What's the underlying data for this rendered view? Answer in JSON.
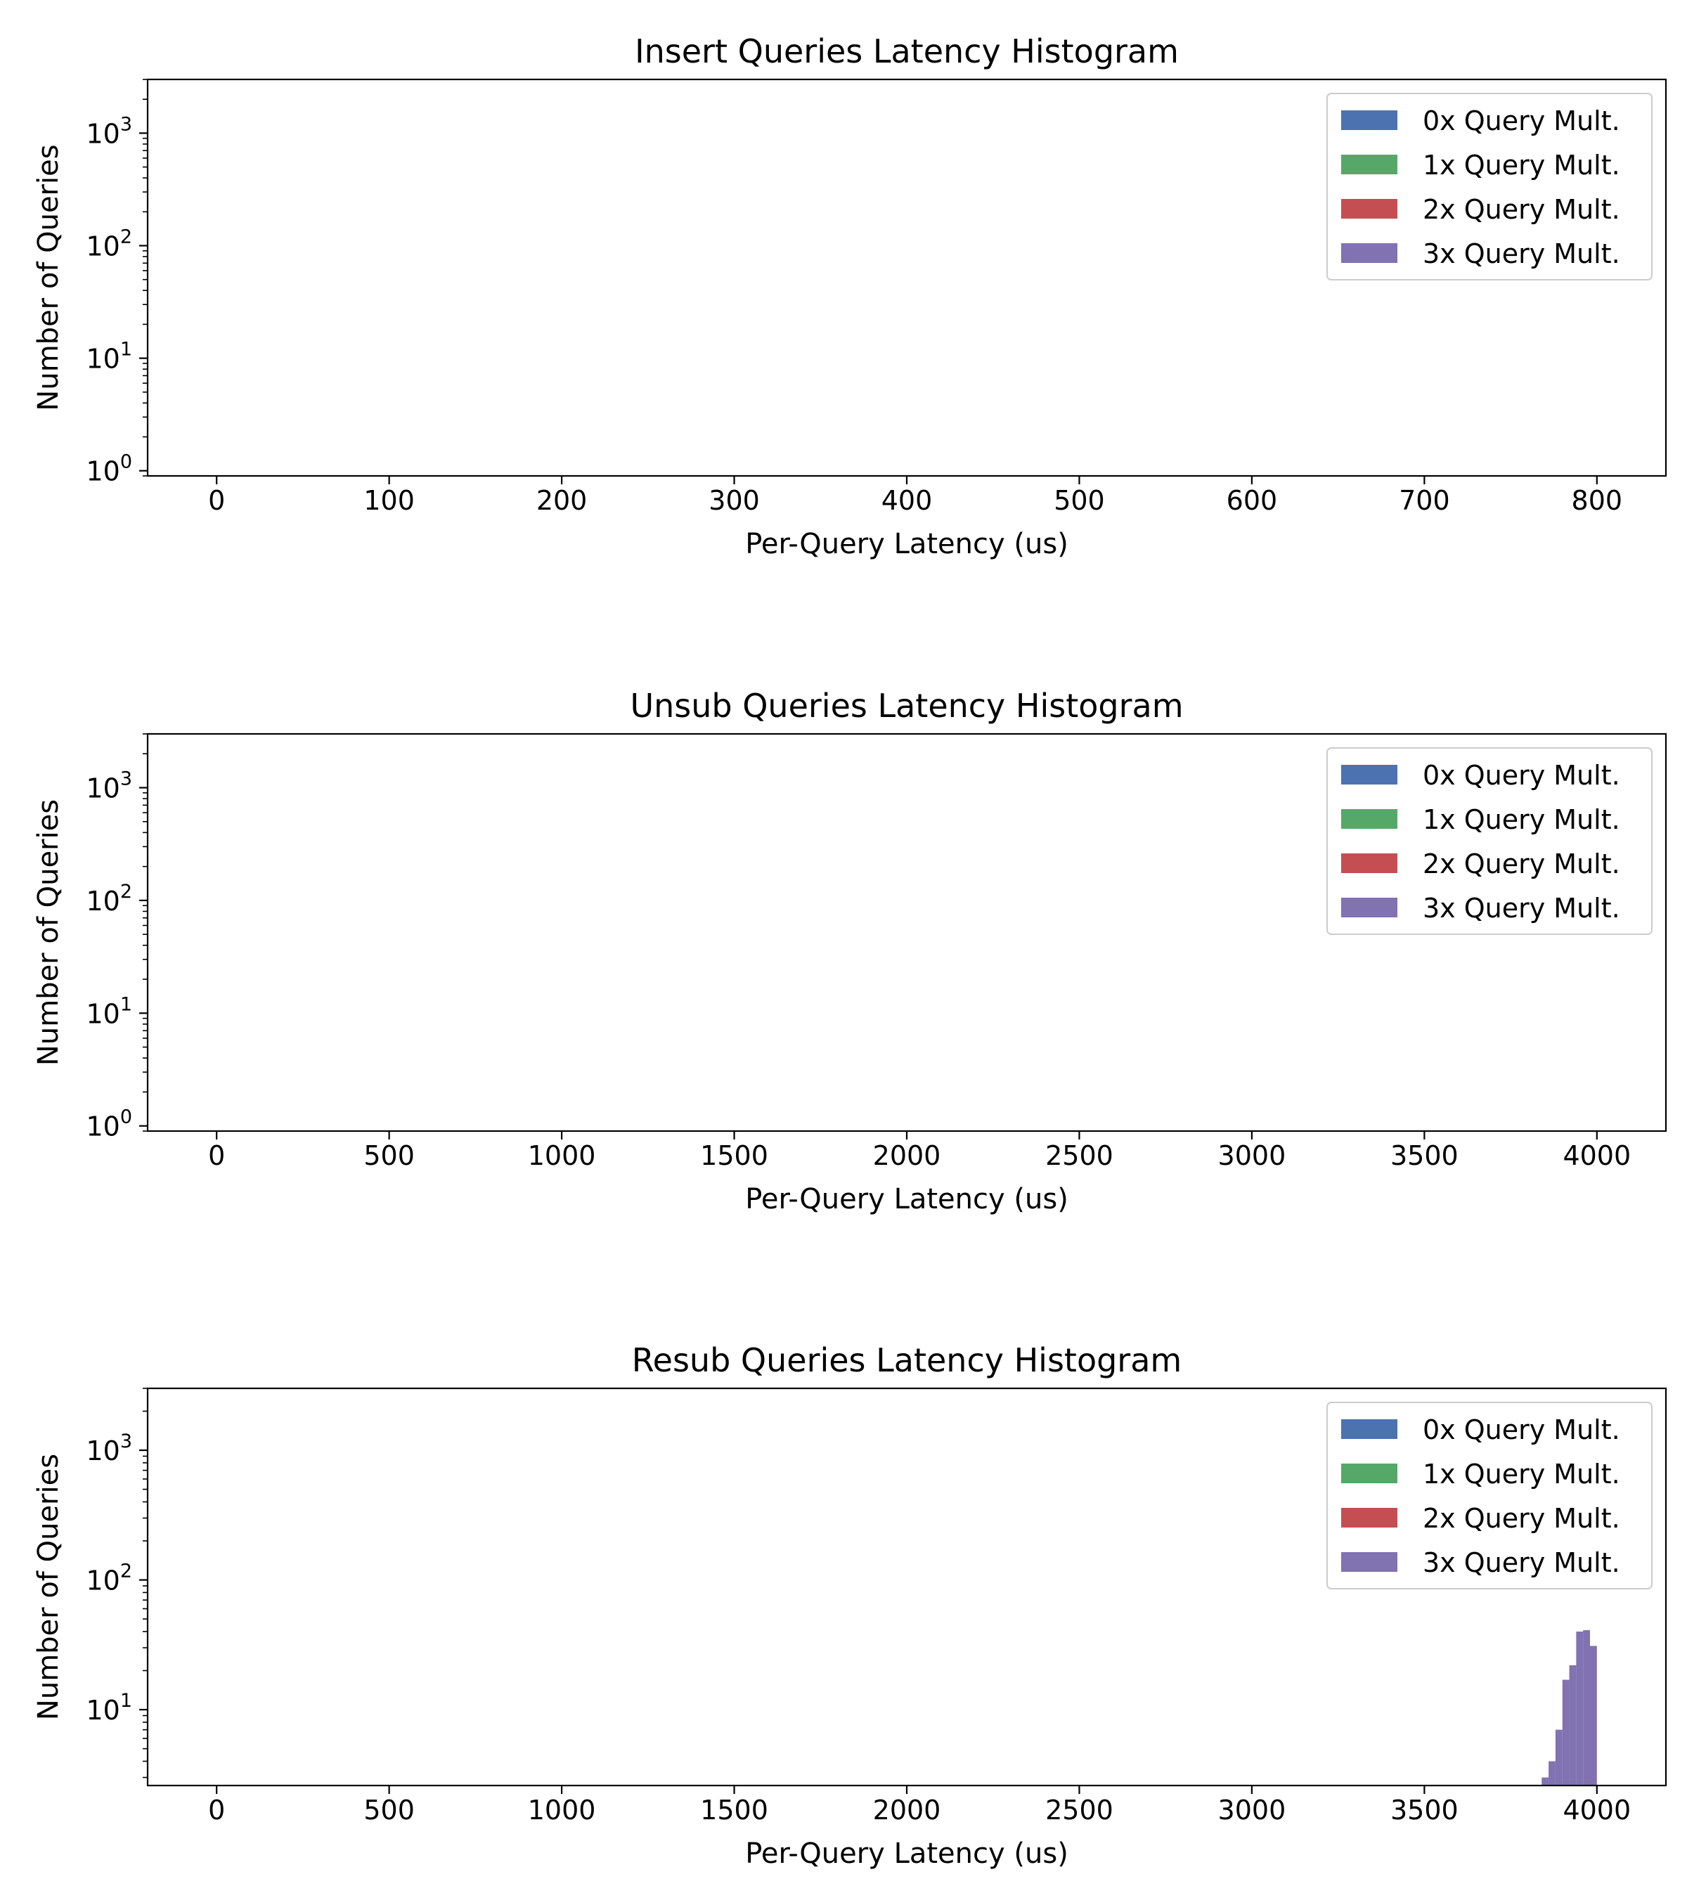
{
  "legend_items": [
    "0x Query Mult.",
    "1x Query Mult.",
    "2x Query Mult.",
    "3x Query Mult."
  ],
  "series_colors": [
    "#4c72b0",
    "#55a868",
    "#c44e52",
    "#8172b2"
  ],
  "chart_data": [
    {
      "type": "bar",
      "title": "Insert Queries Latency Histogram",
      "xlabel": "Per-Query Latency (us)",
      "ylabel": "Number of Queries",
      "xlim": [
        -40,
        840
      ],
      "xticks": [
        0,
        100,
        200,
        300,
        400,
        500,
        600,
        700,
        800
      ],
      "yscale": "log",
      "ylim": [
        0.9,
        3000
      ],
      "yticks": [
        1,
        10,
        100,
        1000
      ],
      "yticklabels": [
        [
          "10",
          "0"
        ],
        [
          "10",
          "1"
        ],
        [
          "10",
          "2"
        ],
        [
          "10",
          "3"
        ]
      ],
      "legend": "top-right",
      "grid": false,
      "series": [
        {
          "name": "0x Query Mult.",
          "x": [],
          "values": []
        },
        {
          "name": "1x Query Mult.",
          "x": [],
          "values": []
        },
        {
          "name": "2x Query Mult.",
          "x": [],
          "values": []
        },
        {
          "name": "3x Query Mult.",
          "x": [],
          "values": []
        }
      ]
    },
    {
      "type": "bar",
      "title": "Unsub Queries Latency Histogram",
      "xlabel": "Per-Query Latency (us)",
      "ylabel": "Number of Queries",
      "xlim": [
        -200,
        4200
      ],
      "xticks": [
        0,
        500,
        1000,
        1500,
        2000,
        2500,
        3000,
        3500,
        4000
      ],
      "yscale": "log",
      "ylim": [
        0.9,
        3000
      ],
      "yticks": [
        1,
        10,
        100,
        1000
      ],
      "yticklabels": [
        [
          "10",
          "0"
        ],
        [
          "10",
          "1"
        ],
        [
          "10",
          "2"
        ],
        [
          "10",
          "3"
        ]
      ],
      "legend": "top-right",
      "grid": false,
      "series": [
        {
          "name": "0x Query Mult.",
          "x": [],
          "values": []
        },
        {
          "name": "1x Query Mult.",
          "x": [],
          "values": []
        },
        {
          "name": "2x Query Mult.",
          "x": [],
          "values": []
        },
        {
          "name": "3x Query Mult.",
          "x": [],
          "values": []
        }
      ]
    },
    {
      "type": "bar",
      "title": "Resub Queries Latency Histogram",
      "xlabel": "Per-Query Latency (us)",
      "ylabel": "Number of Queries",
      "xlim": [
        -200,
        4200
      ],
      "xticks": [
        0,
        500,
        1000,
        1500,
        2000,
        2500,
        3000,
        3500,
        4000
      ],
      "yscale": "log",
      "ylim": [
        2.6,
        3000
      ],
      "yticks": [
        10,
        100,
        1000
      ],
      "yticklabels": [
        [
          "10",
          "1"
        ],
        [
          "10",
          "2"
        ],
        [
          "10",
          "3"
        ]
      ],
      "legend": "top-right",
      "grid": false,
      "series": [
        {
          "name": "0x Query Mult.",
          "x": [],
          "values": []
        },
        {
          "name": "1x Query Mult.",
          "x": [],
          "values": []
        },
        {
          "name": "2x Query Mult.",
          "x": [],
          "values": []
        },
        {
          "name": "3x Query Mult.",
          "x": [],
          "values": []
        }
      ],
      "histogram_bars": {
        "series": "3x Query Mult.",
        "bin_edges": [
          3840,
          3860,
          3880,
          3900,
          3920,
          3940,
          3960,
          3980,
          4000
        ],
        "counts": [
          3,
          4,
          7,
          17,
          22,
          40,
          41,
          31
        ]
      }
    }
  ]
}
